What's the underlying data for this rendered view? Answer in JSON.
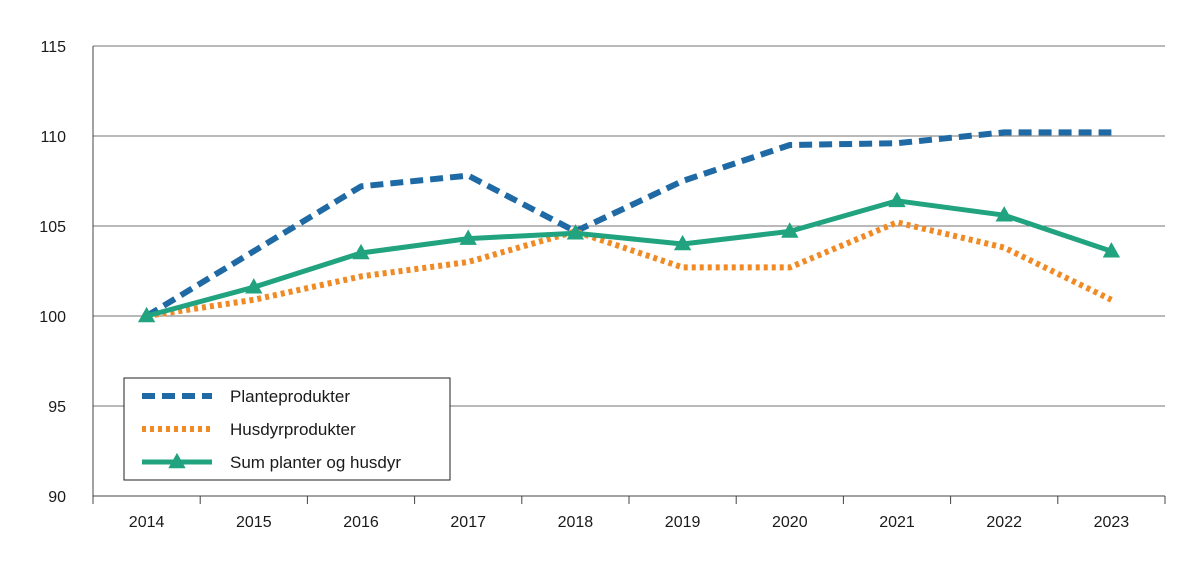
{
  "chart_data": {
    "type": "line",
    "title": "",
    "xlabel": "",
    "ylabel": "",
    "categories": [
      "2014",
      "2015",
      "2016",
      "2017",
      "2018",
      "2019",
      "2020",
      "2021",
      "2022",
      "2023"
    ],
    "ylim": [
      90,
      115
    ],
    "yticks": [
      90,
      95,
      100,
      105,
      110,
      115
    ],
    "grid": true,
    "legend_position": "bottom-left",
    "series": [
      {
        "name": "Planteprodukter",
        "style": "dashed",
        "color": "#1f6aa5",
        "values": [
          100.0,
          103.6,
          107.2,
          107.8,
          104.7,
          107.5,
          109.5,
          109.6,
          110.2,
          110.2
        ]
      },
      {
        "name": "Husdyrprodukter",
        "style": "dotted",
        "color": "#f08a24",
        "values": [
          100.0,
          100.9,
          102.2,
          103.0,
          104.7,
          102.7,
          102.7,
          105.2,
          103.8,
          100.9
        ]
      },
      {
        "name": "Sum planter og husdyr",
        "style": "solid-triangle",
        "color": "#21a37f",
        "values": [
          100.0,
          101.6,
          103.5,
          104.3,
          104.6,
          104.0,
          104.7,
          106.4,
          105.6,
          103.6
        ]
      }
    ]
  }
}
